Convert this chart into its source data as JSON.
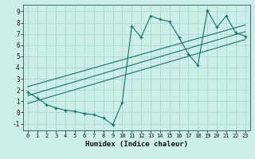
{
  "title": "",
  "xlabel": "Humidex (Indice chaleur)",
  "ylabel": "",
  "bg_color": "#cceee8",
  "grid_color": "#aad8d2",
  "line_color": "#1a7068",
  "xlim": [
    -0.5,
    23.5
  ],
  "ylim": [
    -1.6,
    9.6
  ],
  "xticks": [
    0,
    1,
    2,
    3,
    4,
    5,
    6,
    7,
    8,
    9,
    10,
    11,
    12,
    13,
    14,
    15,
    16,
    17,
    18,
    19,
    20,
    21,
    22,
    23
  ],
  "yticks": [
    -1,
    0,
    1,
    2,
    3,
    4,
    5,
    6,
    7,
    8,
    9
  ],
  "main_x": [
    0,
    1,
    2,
    3,
    4,
    5,
    6,
    7,
    8,
    9,
    10,
    11,
    12,
    13,
    14,
    15,
    16,
    17,
    18,
    19,
    20,
    21,
    22,
    23
  ],
  "main_y": [
    1.8,
    1.3,
    0.7,
    0.4,
    0.2,
    0.1,
    -0.1,
    -0.2,
    -0.5,
    -1.1,
    0.9,
    7.7,
    6.7,
    8.6,
    8.3,
    8.1,
    6.7,
    5.2,
    4.2,
    9.1,
    7.6,
    8.6,
    7.1,
    6.8
  ],
  "line1_x": [
    0,
    23
  ],
  "line1_y": [
    1.5,
    7.2
  ],
  "line2_x": [
    0,
    23
  ],
  "line2_y": [
    2.3,
    7.8
  ],
  "line3_x": [
    0,
    23
  ],
  "line3_y": [
    0.8,
    6.5
  ],
  "xlabel_fontsize": 6.5,
  "xlabel_fontweight": "bold",
  "tick_fontsize": 5.0,
  "ytick_fontsize": 5.5
}
